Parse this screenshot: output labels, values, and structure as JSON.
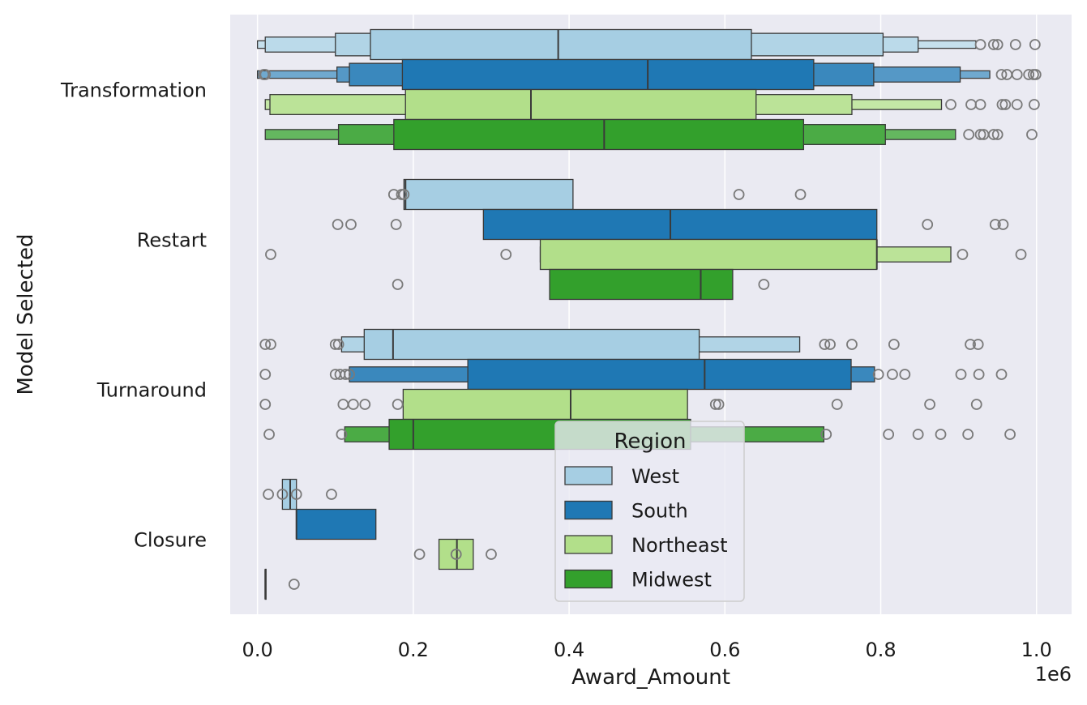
{
  "chart_data": {
    "type": "boxen",
    "orientation": "horizontal",
    "xlabel": "Award_Amount",
    "ylabel": "Model Selected",
    "x_offset_label": "1e6",
    "xlim": [
      -0.035,
      1.045
    ],
    "x_ticks": [
      0.0,
      0.2,
      0.4,
      0.6,
      0.8,
      1.0
    ],
    "x_tick_labels": [
      "0.0",
      "0.2",
      "0.4",
      "0.6",
      "0.8",
      "1.0"
    ],
    "categories": [
      "Transformation",
      "Restart",
      "Turnaround",
      "Closure"
    ],
    "grid": true,
    "legend": {
      "title": "Region",
      "placement": "lower center",
      "entries": [
        "West",
        "South",
        "Northeast",
        "Midwest"
      ]
    },
    "colors": {
      "West": "#a6cee3",
      "South": "#1f78b4",
      "Northeast": "#b2df8a",
      "Midwest": "#33a02c",
      "background": "#eaeaf2",
      "grid": "#ffffff",
      "outline": "#3a3a3a",
      "outlier": "#7a7a7a"
    },
    "series": [
      {
        "name": "West",
        "groups": [
          {
            "category": "Transformation",
            "median": 0.386,
            "levels": [
              [
                0.145,
                0.634
              ],
              [
                0.1,
                0.803
              ],
              [
                0.01,
                0.848
              ],
              [
                0.0,
                0.922
              ]
            ],
            "outliers": [
              0.928,
              0.945,
              0.95,
              0.973,
              0.998
            ]
          },
          {
            "category": "Restart",
            "median": 0.19,
            "levels": [
              [
                0.188,
                0.405
              ]
            ],
            "outliers": [
              0.175,
              0.185,
              0.188,
              0.618,
              0.697
            ]
          },
          {
            "category": "Turnaround",
            "median": 0.174,
            "levels": [
              [
                0.137,
                0.567
              ],
              [
                0.108,
                0.696
              ]
            ],
            "outliers": [
              0.01,
              0.017,
              0.1,
              0.104,
              0.728,
              0.735,
              0.763,
              0.817,
              0.915,
              0.925
            ]
          },
          {
            "category": "Closure",
            "median": 0.042,
            "levels": [
              [
                0.032,
                0.05
              ]
            ],
            "outliers": [
              0.014,
              0.032,
              0.05,
              0.095
            ]
          }
        ]
      },
      {
        "name": "South",
        "groups": [
          {
            "category": "Transformation",
            "median": 0.501,
            "levels": [
              [
                0.186,
                0.714
              ],
              [
                0.118,
                0.791
              ],
              [
                0.102,
                0.902
              ],
              [
                0.0,
                0.94
              ]
            ],
            "outliers": [
              0.008,
              0.01,
              0.955,
              0.962,
              0.975,
              0.99,
              0.996,
              0.999
            ]
          },
          {
            "category": "Restart",
            "median": 0.53,
            "levels": [
              [
                0.29,
                0.795
              ]
            ],
            "outliers": [
              0.103,
              0.12,
              0.178,
              0.86,
              0.947,
              0.957
            ]
          },
          {
            "category": "Turnaround",
            "median": 0.574,
            "levels": [
              [
                0.27,
                0.762
              ],
              [
                0.118,
                0.792
              ]
            ],
            "outliers": [
              0.01,
              0.1,
              0.106,
              0.113,
              0.118,
              0.797,
              0.815,
              0.831,
              0.903,
              0.926,
              0.955
            ]
          },
          {
            "category": "Closure",
            "median": 0.05,
            "levels": [
              [
                0.05,
                0.152
              ]
            ],
            "outliers": []
          }
        ]
      },
      {
        "name": "Northeast",
        "groups": [
          {
            "category": "Transformation",
            "median": 0.351,
            "levels": [
              [
                0.19,
                0.64
              ],
              [
                0.016,
                0.763
              ],
              [
                0.01,
                0.878
              ]
            ],
            "outliers": [
              0.89,
              0.916,
              0.928,
              0.956,
              0.96,
              0.975,
              0.997
            ]
          },
          {
            "category": "Restart",
            "median": 0.795,
            "levels": [
              [
                0.363,
                0.795
              ],
              [
                0.363,
                0.89
              ]
            ],
            "outliers": [
              0.017,
              0.319,
              0.905,
              0.98
            ]
          },
          {
            "category": "Turnaround",
            "median": 0.402,
            "levels": [
              [
                0.187,
                0.552
              ]
            ],
            "outliers": [
              0.01,
              0.11,
              0.123,
              0.138,
              0.18,
              0.588,
              0.592,
              0.744,
              0.863,
              0.923
            ]
          },
          {
            "category": "Closure",
            "median": 0.256,
            "levels": [
              [
                0.233,
                0.277
              ]
            ],
            "outliers": [
              0.208,
              0.255,
              0.3
            ]
          }
        ]
      },
      {
        "name": "Midwest",
        "groups": [
          {
            "category": "Transformation",
            "median": 0.445,
            "levels": [
              [
                0.175,
                0.701
              ],
              [
                0.104,
                0.806
              ],
              [
                0.01,
                0.896
              ]
            ],
            "outliers": [
              0.913,
              0.928,
              0.932,
              0.945,
              0.95,
              0.994
            ]
          },
          {
            "category": "Restart",
            "median": 0.569,
            "levels": [
              [
                0.375,
                0.61
              ]
            ],
            "outliers": [
              0.18,
              0.65
            ]
          },
          {
            "category": "Turnaround",
            "median": 0.2,
            "levels": [
              [
                0.169,
                0.556
              ],
              [
                0.112,
                0.727
              ]
            ],
            "outliers": [
              0.015,
              0.108,
              0.73,
              0.81,
              0.848,
              0.877,
              0.912,
              0.966
            ]
          },
          {
            "category": "Closure",
            "median": 0.01,
            "levels": [
              [
                0.01,
                0.011
              ]
            ],
            "outliers": [
              0.047
            ]
          }
        ]
      }
    ]
  }
}
